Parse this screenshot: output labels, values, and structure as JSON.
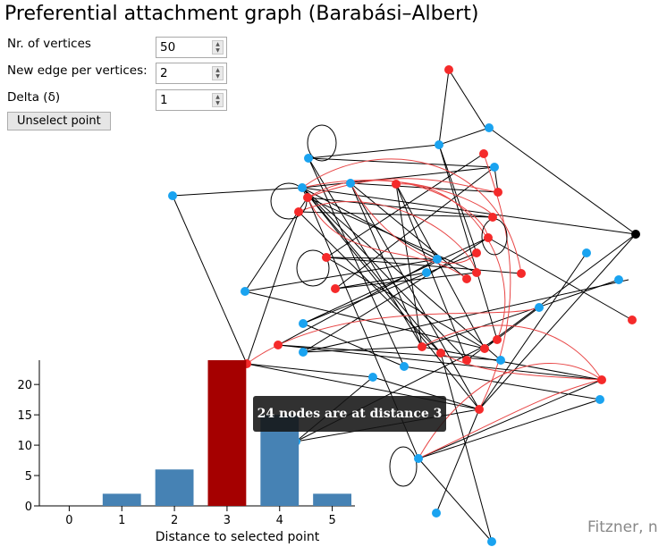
{
  "app": {
    "title": "Preferential attachment graph (Barabási–Albert)",
    "credit": "Fitzner, n"
  },
  "controls": {
    "vertices": {
      "label": "Nr. of vertices",
      "value": "50"
    },
    "edges": {
      "label": "New edge per vertices:",
      "value": "2"
    },
    "delta": {
      "label": "Delta (δ)",
      "value": "1"
    },
    "unselect_label": "Unselect point"
  },
  "colors": {
    "selected_bar": "#a50000",
    "bar": "#4682b4",
    "node_blue": "#1aa3f0",
    "node_red": "#f52a2a",
    "node_black": "#000000"
  },
  "tooltip": "24 nodes are at distance 3",
  "chart_data": {
    "type": "bar",
    "categories": [
      "0",
      "1",
      "2",
      "3",
      "4",
      "5"
    ],
    "values": [
      0,
      2,
      6,
      24,
      15,
      2
    ],
    "highlight_index": 3,
    "xlabel": "Distance to selected point",
    "ylabel": "",
    "ylim": [
      0,
      24
    ],
    "yticks": [
      "0",
      "5",
      "10",
      "15",
      "20"
    ]
  }
}
